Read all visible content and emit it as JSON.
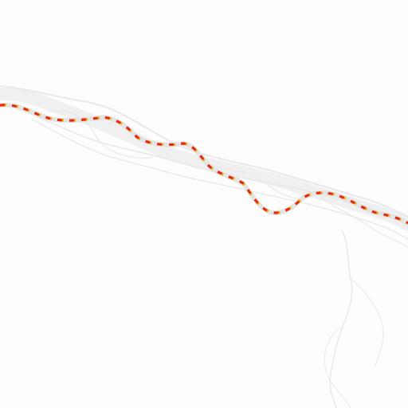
{
  "map": {
    "background_color": "#fdfdfd",
    "river_color": "#ececec",
    "route": {
      "style": "dashed",
      "dash_colors": [
        "#e62a10",
        "#f0b400"
      ]
    },
    "features": [
      "braided-river-channel",
      "tributary-stream",
      "highlighted-route"
    ]
  }
}
